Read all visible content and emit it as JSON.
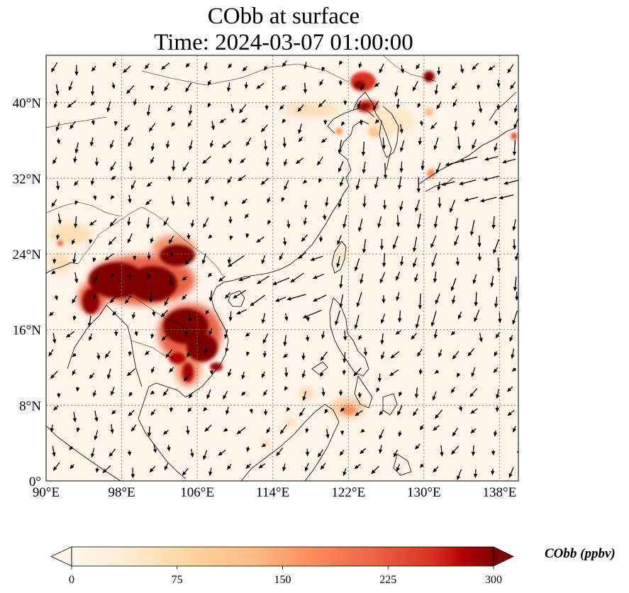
{
  "title": {
    "line1": "CObb at surface",
    "line2": "Time: 2024-03-07 01:00:00"
  },
  "map": {
    "lon_range": [
      90,
      140
    ],
    "lat_range": [
      0,
      45
    ],
    "lon_ticks": [
      {
        "value": 90,
        "label": "90°E"
      },
      {
        "value": 98,
        "label": "98°E"
      },
      {
        "value": 106,
        "label": "106°E"
      },
      {
        "value": 114,
        "label": "114°E"
      },
      {
        "value": 122,
        "label": "122°E"
      },
      {
        "value": 130,
        "label": "130°E"
      },
      {
        "value": 138,
        "label": "138°E"
      }
    ],
    "lat_ticks": [
      {
        "value": 0,
        "label": "0°"
      },
      {
        "value": 8,
        "label": "8°N"
      },
      {
        "value": 16,
        "label": "16°N"
      },
      {
        "value": 24,
        "label": "24°N"
      },
      {
        "value": 32,
        "label": "32°N"
      },
      {
        "value": 40,
        "label": "40°N"
      }
    ],
    "gridlines": "dotted",
    "background_color": "#fff5eb",
    "hotspots": [
      {
        "lon": 97.5,
        "lat": 20.5,
        "value": 300
      },
      {
        "lon": 100.5,
        "lat": 21.0,
        "value": 300
      },
      {
        "lon": 103.0,
        "lat": 20.0,
        "value": 300
      },
      {
        "lon": 104.5,
        "lat": 22.5,
        "value": 300
      },
      {
        "lon": 106.0,
        "lat": 16.0,
        "value": 300
      },
      {
        "lon": 107.0,
        "lat": 14.5,
        "value": 300
      },
      {
        "lon": 105.0,
        "lat": 13.0,
        "value": 260
      },
      {
        "lon": 95.5,
        "lat": 19.0,
        "value": 280
      },
      {
        "lon": 123.0,
        "lat": 41.5,
        "value": 280
      },
      {
        "lon": 125.0,
        "lat": 39.5,
        "value": 240
      },
      {
        "lon": 130.5,
        "lat": 42.5,
        "value": 260
      },
      {
        "lon": 138.5,
        "lat": 36.5,
        "value": 200
      },
      {
        "lon": 121.0,
        "lat": 36.5,
        "value": 150
      },
      {
        "lon": 124.5,
        "lat": 8.0,
        "value": 150
      },
      {
        "lon": 118.0,
        "lat": 9.0,
        "value": 120
      },
      {
        "lon": 93.0,
        "lat": 25.0,
        "value": 120
      }
    ]
  },
  "colorbar": {
    "label": "CObb (ppbv)",
    "min": 0,
    "max": 300,
    "ticks": [
      "0",
      "75",
      "150",
      "225",
      "300"
    ],
    "extend": "both",
    "colormap": "OrRd",
    "colors": [
      "#fff5eb",
      "#fdd49e",
      "#fdbb84",
      "#fc8d59",
      "#ef6548",
      "#d7301f",
      "#b30000",
      "#7f0000"
    ]
  }
}
